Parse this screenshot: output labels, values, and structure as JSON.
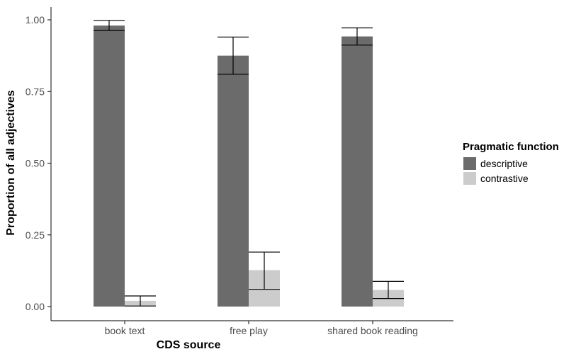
{
  "chart_data": {
    "type": "bar",
    "xlabel": "CDS source",
    "ylabel": "Proportion of all adjectives",
    "categories": [
      "book text",
      "free play",
      "shared book reading"
    ],
    "ylim": [
      0,
      1.05
    ],
    "yticks": [
      0.0,
      0.25,
      0.5,
      0.75,
      1.0
    ],
    "ytick_labels": [
      "0.00",
      "0.25",
      "0.50",
      "0.75",
      "1.00"
    ],
    "series": [
      {
        "name": "descriptive",
        "color": "#6b6b6b",
        "values": [
          0.98,
          0.875,
          0.942
        ],
        "error_low": [
          0.963,
          0.81,
          0.912
        ],
        "error_high": [
          0.998,
          0.94,
          0.972
        ]
      },
      {
        "name": "contrastive",
        "color": "#cccccc",
        "values": [
          0.02,
          0.127,
          0.058
        ],
        "error_low": [
          0.002,
          0.06,
          0.028
        ],
        "error_high": [
          0.037,
          0.19,
          0.088
        ]
      }
    ],
    "legend": {
      "title": "Pragmatic function",
      "position": "right"
    },
    "grid": false
  }
}
